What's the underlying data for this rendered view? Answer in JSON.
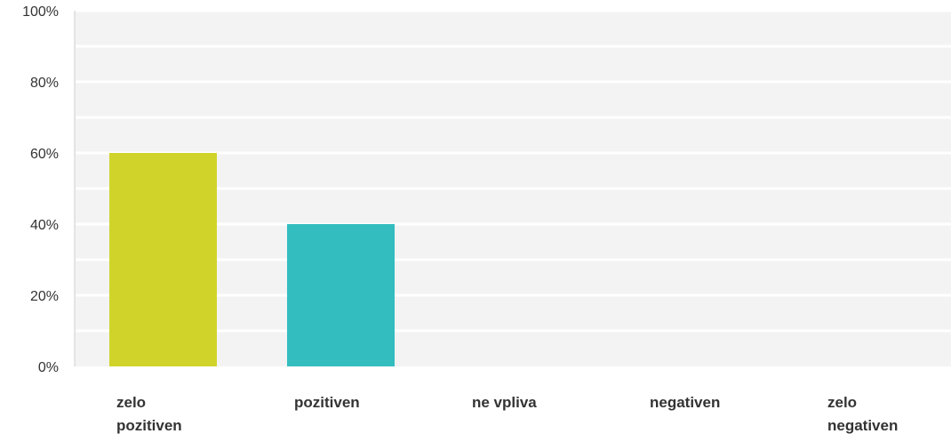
{
  "chart_data": {
    "type": "bar",
    "categories": [
      "zelo pozitiven",
      "pozitiven",
      "ne vpliva",
      "negativen",
      "zelo negativen"
    ],
    "category_lines": [
      [
        "zelo",
        "pozitiven"
      ],
      [
        "pozitiven"
      ],
      [
        "ne vpliva"
      ],
      [
        "negativen"
      ],
      [
        "zelo",
        "negativen"
      ]
    ],
    "values": [
      60,
      40,
      0,
      0,
      0
    ],
    "unit": "%",
    "ylim": [
      0,
      100
    ],
    "yticks": [
      0,
      20,
      40,
      60,
      80,
      100
    ],
    "ytick_labels": [
      "0%",
      "20%",
      "40%",
      "60%",
      "80%",
      "100%"
    ],
    "title": "",
    "xlabel": "",
    "ylabel": "",
    "grid": true,
    "legend": "none",
    "colors": [
      "#d0d42a",
      "#33bdbf",
      "#8e8e8e",
      "#8e8e8e",
      "#8e8e8e"
    ],
    "plot_background": "#f3f3f3",
    "gridline_color": "#ffffff"
  }
}
